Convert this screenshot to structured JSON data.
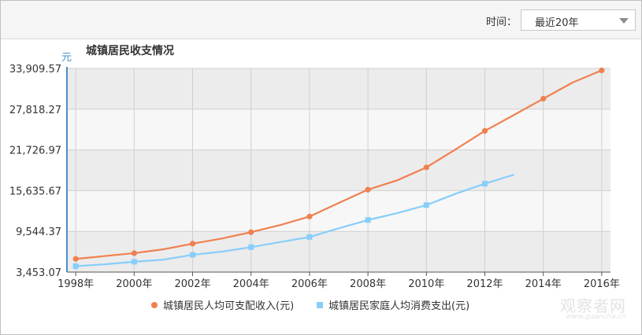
{
  "header": {
    "time_label": "时间：",
    "range_value": "最近20年"
  },
  "watermark": {
    "line1": "观察者网",
    "line2": "www.guancha.cn"
  },
  "chart_data": {
    "type": "line",
    "title": "城镇居民收支情况",
    "ylabel": "元",
    "xlabel": "",
    "x": [
      1998,
      1999,
      2000,
      2001,
      2002,
      2003,
      2004,
      2005,
      2006,
      2007,
      2008,
      2009,
      2010,
      2011,
      2012,
      2013,
      2014,
      2015,
      2016
    ],
    "x_tick_labels": [
      "1998年",
      "2000年",
      "2002年",
      "2004年",
      "2006年",
      "2008年",
      "2010年",
      "2012年",
      "2014年",
      "2016年"
    ],
    "y_ticks": [
      3453.07,
      9544.37,
      15635.67,
      21726.97,
      27818.27,
      33909.57
    ],
    "y_tick_labels": [
      "3,453.07",
      "9,544.37",
      "15,635.67",
      "21,726.97",
      "27,818.27",
      "33,909.57"
    ],
    "ylim": [
      3453.07,
      33909.57
    ],
    "grid": true,
    "legend_position": "bottom",
    "series": [
      {
        "name": "城镇居民人均可支配收入(元)",
        "color": "#f08050",
        "marker": "circle",
        "x": [
          1998,
          1999,
          2000,
          2001,
          2002,
          2003,
          2004,
          2005,
          2006,
          2007,
          2008,
          2009,
          2010,
          2011,
          2012,
          2013,
          2014,
          2015,
          2016
        ],
        "values": [
          5425,
          5854,
          6280,
          6860,
          7703,
          8472,
          9422,
          10493,
          11759,
          13786,
          15781,
          17175,
          19109,
          21810,
          24565,
          26955,
          29381,
          31790,
          33616
        ]
      },
      {
        "name": "城镇居民家庭人均消费支出(元)",
        "color": "#87cefa",
        "marker": "square",
        "x": [
          1998,
          1999,
          2000,
          2001,
          2002,
          2003,
          2004,
          2005,
          2006,
          2007,
          2008,
          2009,
          2010,
          2011,
          2012,
          2013
        ],
        "values": [
          4332,
          4616,
          4998,
          5309,
          6030,
          6511,
          7182,
          7943,
          8697,
          9997,
          11243,
          12265,
          13471,
          15161,
          16674,
          18023
        ]
      }
    ]
  }
}
